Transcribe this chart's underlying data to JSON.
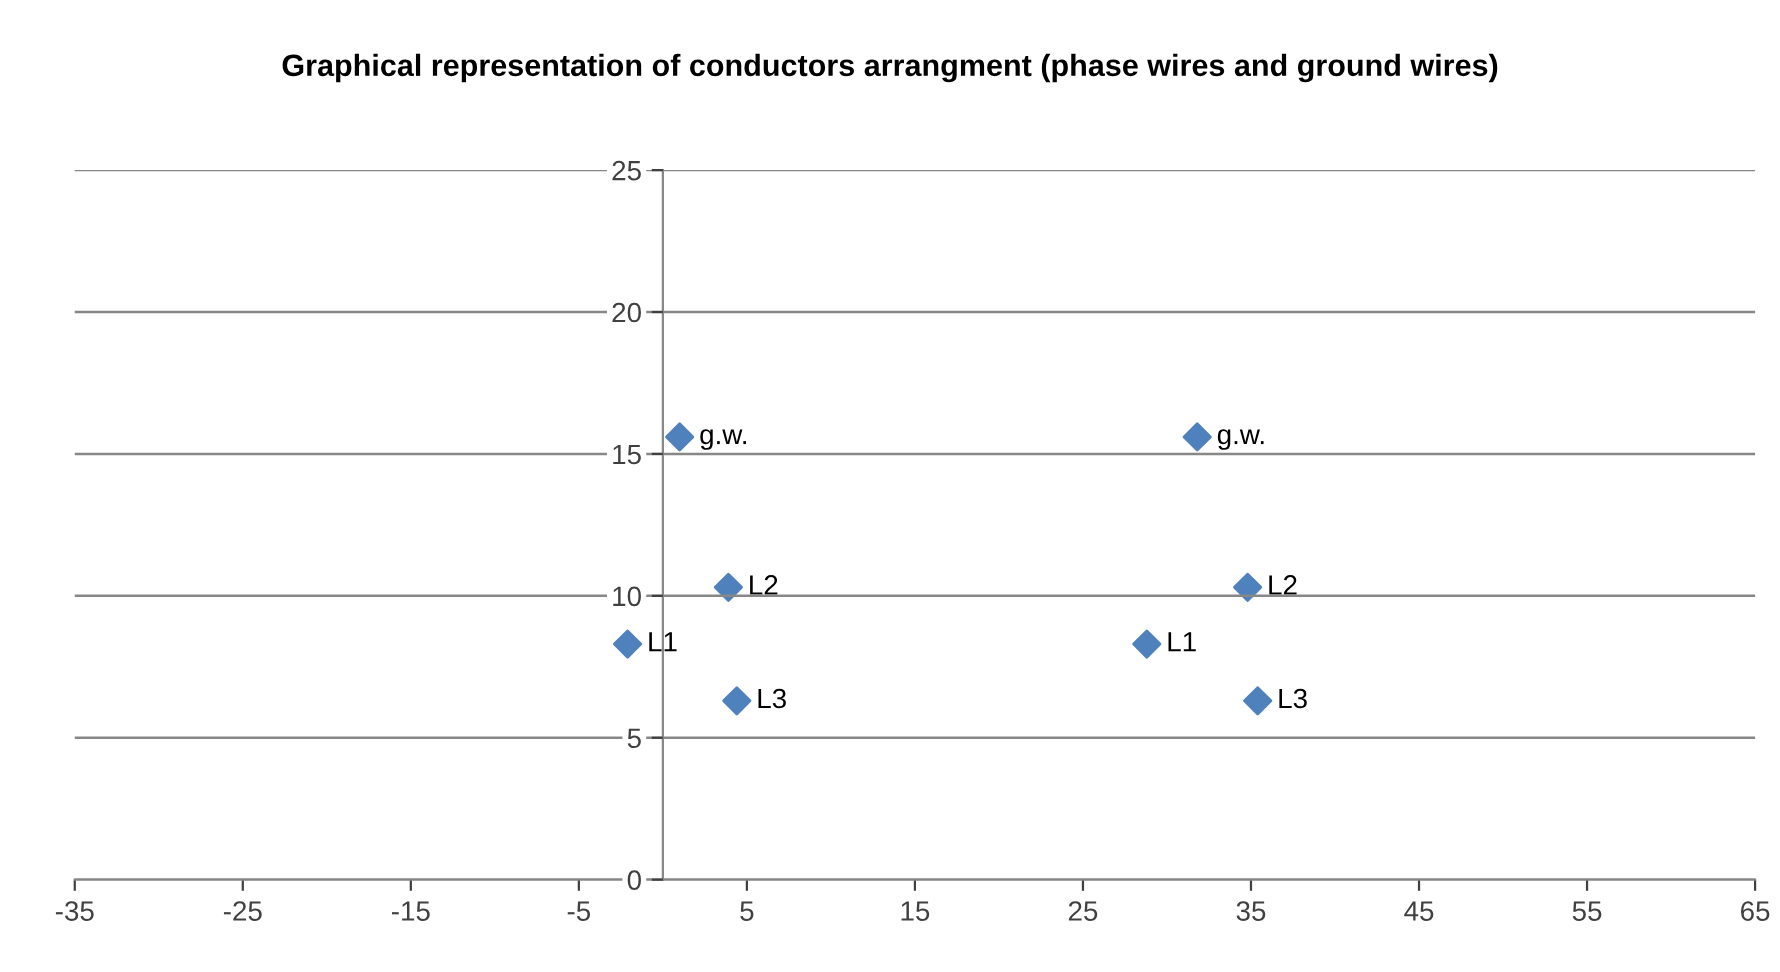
{
  "chart_data": {
    "type": "scatter",
    "title": "Graphical representation of conductors arrangment (phase wires and ground wires)",
    "x": [
      1,
      3.9,
      -2.1,
      4.4,
      31.8,
      34.8,
      28.8,
      35.4
    ],
    "series": [
      {
        "color": "#4f81bd",
        "values": [
          15.6,
          10.3,
          8.3,
          6.3,
          15.6,
          10.3,
          8.3,
          6.3
        ]
      }
    ],
    "annotations": [
      {
        "text": "g.w.",
        "x": 1,
        "y": 15.6
      },
      {
        "text": "L2",
        "x": 3.9,
        "y": 10.3
      },
      {
        "text": "L1",
        "x": -2.1,
        "y": 8.3
      },
      {
        "text": "L3",
        "x": 4.4,
        "y": 6.3
      },
      {
        "text": "g.w.",
        "x": 31.8,
        "y": 15.6
      },
      {
        "text": "L2",
        "x": 34.8,
        "y": 10.3
      },
      {
        "text": "L1",
        "x": 28.8,
        "y": 8.3
      },
      {
        "text": "L3",
        "x": 35.4,
        "y": 6.3
      }
    ],
    "xlim": [
      -35,
      65
    ],
    "xticks": [
      -35,
      -25,
      -15,
      -5,
      5,
      15,
      25,
      35,
      45,
      55,
      65
    ],
    "ylim": [
      0,
      25
    ],
    "yticks": [
      0,
      5,
      10,
      15,
      20,
      25
    ],
    "grid": "y",
    "marker": "diamond",
    "legend": false
  }
}
